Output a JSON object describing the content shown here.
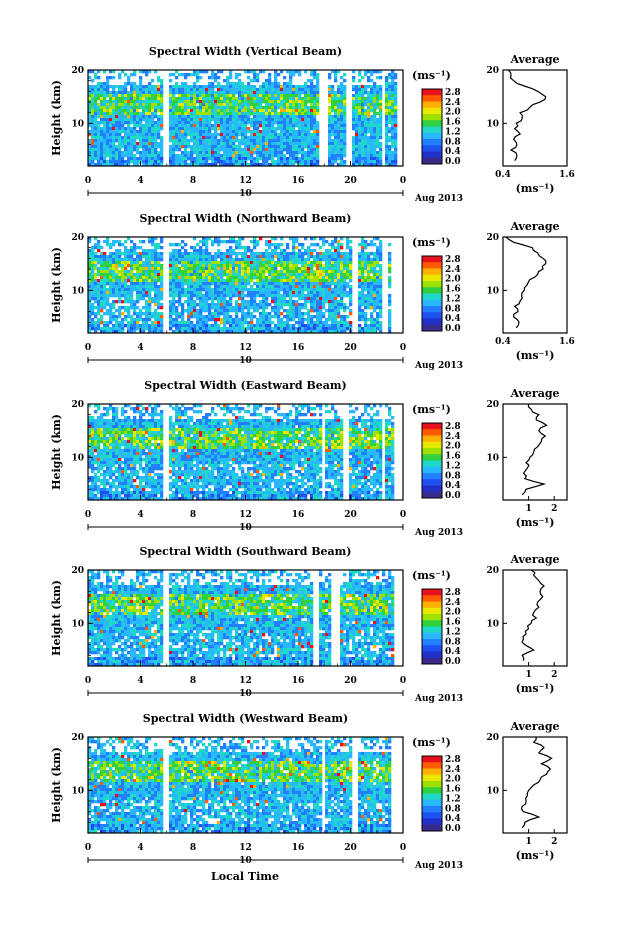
{
  "figure": {
    "shared_xlabel": "Local Time",
    "date_label": "10",
    "month_label": "Aug 2013",
    "colorbar_unit": "(ms⁻¹)",
    "colorbar_ticks": [
      "2.8",
      "2.4",
      "2.0",
      "1.6",
      "1.2",
      "0.8",
      "0.4",
      "0.0"
    ],
    "colorbar_colors": [
      "#ffffff",
      "#e8101c",
      "#ff5a00",
      "#ffb000",
      "#e8e800",
      "#9ee000",
      "#30d040",
      "#20d8c8",
      "#28b8ff",
      "#2080ff",
      "#1f50f0",
      "#2030c8",
      "#3a2a8a"
    ],
    "average_title": "Average",
    "average_unit": "(ms⁻¹)"
  },
  "chart_data": [
    {
      "type": "heatmap",
      "title": "Spectral Width (Vertical Beam)",
      "ylabel": "Height (km)",
      "xlabel": "Local Time",
      "xlim": [
        0,
        24
      ],
      "ylim": [
        2,
        20
      ],
      "xticks": [
        "0",
        "4",
        "8",
        "12",
        "16",
        "20",
        "0"
      ],
      "yticks": [
        "20",
        "10"
      ],
      "gaps_hours": [
        [
          5.5,
          6.1
        ],
        [
          17.5,
          18.1
        ],
        [
          19.5,
          20.0
        ],
        [
          22.2,
          22.6
        ],
        [
          23.5,
          24.0
        ]
      ],
      "average_profile": {
        "xlim": [
          0.4,
          1.6
        ],
        "xticks": [
          "0.4",
          "1.6"
        ],
        "yticks": [
          "20",
          "10"
        ],
        "height": [
          3,
          4,
          5,
          6,
          7,
          8,
          9,
          10,
          11,
          12,
          13,
          14,
          15,
          16,
          17,
          18,
          19,
          20
        ],
        "value": [
          0.62,
          0.66,
          0.55,
          0.66,
          0.6,
          0.72,
          0.62,
          0.65,
          0.76,
          0.72,
          0.9,
          1.1,
          1.2,
          1.05,
          0.8,
          0.6,
          0.55,
          0.5
        ]
      }
    },
    {
      "type": "heatmap",
      "title": "Spectral Width (Northward Beam)",
      "ylabel": "Height (km)",
      "xlabel": "Local Time",
      "xlim": [
        0,
        24
      ],
      "ylim": [
        2,
        20
      ],
      "xticks": [
        "0",
        "4",
        "8",
        "12",
        "16",
        "20",
        "0"
      ],
      "yticks": [
        "20",
        "10"
      ],
      "gaps_hours": [
        [
          5.6,
          6.1
        ],
        [
          20.0,
          20.4
        ],
        [
          22.3,
          22.7
        ],
        [
          23.0,
          24.0
        ]
      ],
      "average_profile": {
        "xlim": [
          0.4,
          1.6
        ],
        "xticks": [
          "0.4",
          "1.6"
        ],
        "yticks": [
          "20",
          "10"
        ],
        "height": [
          3,
          4,
          5,
          6,
          7,
          8,
          9,
          10,
          11,
          12,
          13,
          14,
          15,
          16,
          17,
          18,
          19,
          20
        ],
        "value": [
          0.65,
          0.7,
          0.6,
          0.68,
          0.62,
          0.72,
          0.75,
          0.8,
          0.85,
          0.9,
          1.05,
          1.15,
          1.2,
          1.15,
          1.05,
          0.95,
          0.6,
          0.45
        ]
      }
    },
    {
      "type": "heatmap",
      "title": "Spectral Width (Eastward Beam)",
      "ylabel": "Height (km)",
      "xlabel": "Local Time",
      "xlim": [
        0,
        24
      ],
      "ylim": [
        2,
        20
      ],
      "xticks": [
        "0",
        "4",
        "8",
        "12",
        "16",
        "20",
        "0"
      ],
      "yticks": [
        "20",
        "10"
      ],
      "gaps_hours": [
        [
          5.5,
          6.0
        ],
        [
          17.6,
          18.0
        ],
        [
          19.3,
          19.8
        ],
        [
          22.2,
          22.6
        ],
        [
          23.2,
          24.0
        ]
      ],
      "average_profile": {
        "xlim": [
          0,
          2.5
        ],
        "xticks": [
          "1",
          "2"
        ],
        "yticks": [
          "20",
          "10"
        ],
        "height": [
          3,
          4,
          5,
          6,
          7,
          8,
          9,
          10,
          11,
          12,
          13,
          14,
          15,
          16,
          17,
          18,
          19,
          20
        ],
        "value": [
          0.75,
          0.9,
          1.6,
          0.85,
          0.8,
          0.95,
          0.9,
          1.05,
          1.2,
          1.35,
          1.5,
          1.65,
          1.4,
          1.7,
          1.3,
          1.4,
          1.1,
          1.0
        ]
      }
    },
    {
      "type": "heatmap",
      "title": "Spectral Width (Southward Beam)",
      "ylabel": "Height (km)",
      "xlabel": "Local Time",
      "xlim": [
        0,
        24
      ],
      "ylim": [
        2,
        20
      ],
      "xticks": [
        "0",
        "4",
        "8",
        "12",
        "16",
        "20",
        "0"
      ],
      "yticks": [
        "20",
        "10"
      ],
      "gaps_hours": [
        [
          5.5,
          6.0
        ],
        [
          17.0,
          17.4
        ],
        [
          18.5,
          19.0
        ],
        [
          23.2,
          24.0
        ]
      ],
      "average_profile": {
        "xlim": [
          0,
          2.5
        ],
        "xticks": [
          "1",
          "2"
        ],
        "yticks": [
          "20",
          "10"
        ],
        "height": [
          3,
          4,
          5,
          6,
          7,
          8,
          9,
          10,
          11,
          12,
          13,
          14,
          15,
          16,
          17,
          18,
          19,
          20
        ],
        "value": [
          0.8,
          0.75,
          1.2,
          0.85,
          0.8,
          0.9,
          1.0,
          1.1,
          1.3,
          1.2,
          1.4,
          1.35,
          1.55,
          1.45,
          1.6,
          1.4,
          1.2,
          1.1
        ]
      }
    },
    {
      "type": "heatmap",
      "title": "Spectral Width (Westward Beam)",
      "ylabel": "Height (km)",
      "xlabel": "Local Time",
      "xlim": [
        0,
        24
      ],
      "ylim": [
        2,
        20
      ],
      "xticks": [
        "0",
        "4",
        "8",
        "12",
        "16",
        "20",
        "0"
      ],
      "yticks": [
        "20",
        "10"
      ],
      "gaps_hours": [
        [
          5.5,
          6.0
        ],
        [
          17.6,
          18.0
        ],
        [
          20.0,
          20.4
        ],
        [
          23.0,
          24.0
        ]
      ],
      "average_profile": {
        "xlim": [
          0,
          2.5
        ],
        "xticks": [
          "1",
          "2"
        ],
        "yticks": [
          "20",
          "10"
        ],
        "height": [
          3,
          4,
          5,
          6,
          7,
          8,
          9,
          10,
          11,
          12,
          13,
          14,
          15,
          16,
          17,
          18,
          19,
          20
        ],
        "value": [
          0.75,
          0.85,
          1.4,
          0.8,
          0.75,
          0.9,
          0.95,
          1.0,
          1.2,
          1.45,
          1.7,
          1.85,
          1.5,
          1.9,
          1.4,
          1.6,
          1.2,
          1.3
        ]
      }
    }
  ]
}
